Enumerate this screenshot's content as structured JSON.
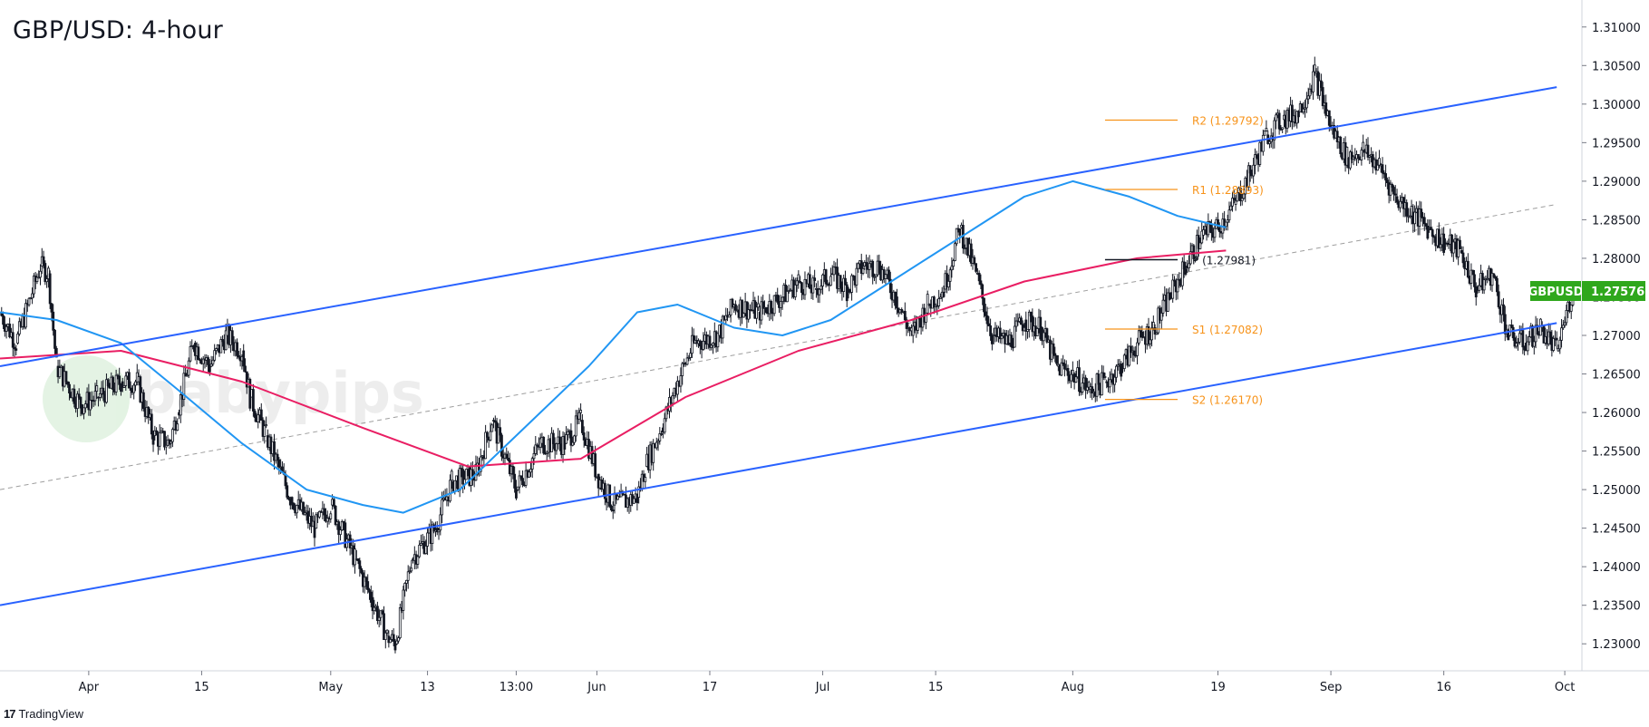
{
  "chart_data": {
    "type": "candlestick",
    "title": "GBP/USD: 4-hour",
    "symbol": "GBPUSD",
    "last_price": "1.27576",
    "y_axis": {
      "min": 1.2265,
      "max": 1.3135,
      "ticks": [
        "1.31000",
        "1.30500",
        "1.30000",
        "1.29500",
        "1.29000",
        "1.28500",
        "1.28000",
        "1.27500",
        "1.27000",
        "1.26500",
        "1.26000",
        "1.25500",
        "1.25000",
        "1.24500",
        "1.24000",
        "1.23500",
        "1.23000"
      ]
    },
    "x_axis": {
      "labels": [
        "Apr",
        "15",
        "May",
        "13",
        "13:00",
        "Jun",
        "17",
        "Jul",
        "15",
        "Aug",
        "19",
        "Sep",
        "16",
        "Oct"
      ],
      "range_start": "2024-03-21",
      "range_end": "2024-10-02"
    },
    "grid": false,
    "price_path": [
      [
        "2024-03-21",
        1.273
      ],
      [
        "2024-03-23",
        1.269
      ],
      [
        "2024-03-26",
        1.279
      ],
      [
        "2024-03-27",
        1.278
      ],
      [
        "2024-03-28",
        1.266
      ],
      [
        "2024-03-31",
        1.261
      ],
      [
        "2024-04-02",
        1.262
      ],
      [
        "2024-04-05",
        1.264
      ],
      [
        "2024-04-07",
        1.264
      ],
      [
        "2024-04-09",
        1.257
      ],
      [
        "2024-04-11",
        1.256
      ],
      [
        "2024-04-12",
        1.26
      ],
      [
        "2024-04-14",
        1.269
      ],
      [
        "2024-04-16",
        1.266
      ],
      [
        "2024-04-18",
        1.27
      ],
      [
        "2024-04-20",
        1.268
      ],
      [
        "2024-04-21",
        1.262
      ],
      [
        "2024-04-23",
        1.257
      ],
      [
        "2024-04-26",
        1.249
      ],
      [
        "2024-04-29",
        1.245
      ],
      [
        "2024-05-01",
        1.248
      ],
      [
        "2024-05-04",
        1.241
      ],
      [
        "2024-05-06",
        1.236
      ],
      [
        "2024-05-08",
        1.231
      ],
      [
        "2024-05-09",
        1.23
      ],
      [
        "2024-05-11",
        1.241
      ],
      [
        "2024-05-14",
        1.245
      ],
      [
        "2024-05-16",
        1.251
      ],
      [
        "2024-05-19",
        1.252
      ],
      [
        "2024-05-21",
        1.259
      ],
      [
        "2024-05-24",
        1.25
      ],
      [
        "2024-05-27",
        1.256
      ],
      [
        "2024-05-30",
        1.256
      ],
      [
        "2024-06-01",
        1.259
      ],
      [
        "2024-06-03",
        1.252
      ],
      [
        "2024-06-05",
        1.248
      ],
      [
        "2024-06-08",
        1.249
      ],
      [
        "2024-06-09",
        1.253
      ],
      [
        "2024-06-11",
        1.258
      ],
      [
        "2024-06-13",
        1.264
      ],
      [
        "2024-06-15",
        1.269
      ],
      [
        "2024-06-18",
        1.27
      ],
      [
        "2024-06-20",
        1.274
      ],
      [
        "2024-06-23",
        1.273
      ],
      [
        "2024-06-26",
        1.275
      ],
      [
        "2024-06-28",
        1.277
      ],
      [
        "2024-06-30",
        1.276
      ],
      [
        "2024-07-02",
        1.278
      ],
      [
        "2024-07-04",
        1.276
      ],
      [
        "2024-07-06",
        1.279
      ],
      [
        "2024-07-08",
        1.279
      ],
      [
        "2024-07-10",
        1.275
      ],
      [
        "2024-07-12",
        1.27
      ],
      [
        "2024-07-14",
        1.274
      ],
      [
        "2024-07-16",
        1.276
      ],
      [
        "2024-07-18",
        1.284
      ],
      [
        "2024-07-20",
        1.278
      ],
      [
        "2024-07-22",
        1.27
      ],
      [
        "2024-07-24",
        1.269
      ],
      [
        "2024-07-26",
        1.272
      ],
      [
        "2024-07-28",
        1.271
      ],
      [
        "2024-07-30",
        1.266
      ],
      [
        "2024-08-01",
        1.265
      ],
      [
        "2024-08-03",
        1.263
      ],
      [
        "2024-08-05",
        1.264
      ],
      [
        "2024-08-07",
        1.266
      ],
      [
        "2024-08-09",
        1.269
      ],
      [
        "2024-08-11",
        1.271
      ],
      [
        "2024-08-13",
        1.275
      ],
      [
        "2024-08-15",
        1.279
      ],
      [
        "2024-08-17",
        1.283
      ],
      [
        "2024-08-19",
        1.284
      ],
      [
        "2024-08-21",
        1.287
      ],
      [
        "2024-08-23",
        1.291
      ],
      [
        "2024-08-25",
        1.296
      ],
      [
        "2024-08-27",
        1.298
      ],
      [
        "2024-08-29",
        1.299
      ],
      [
        "2024-08-31",
        1.304
      ],
      [
        "2024-09-02",
        1.297
      ],
      [
        "2024-09-04",
        1.293
      ],
      [
        "2024-09-06",
        1.294
      ],
      [
        "2024-09-08",
        1.292
      ],
      [
        "2024-09-10",
        1.288
      ],
      [
        "2024-09-12",
        1.286
      ],
      [
        "2024-09-14",
        1.284
      ],
      [
        "2024-09-16",
        1.282
      ],
      [
        "2024-09-18",
        1.281
      ],
      [
        "2024-09-20",
        1.276
      ],
      [
        "2024-09-22",
        1.278
      ],
      [
        "2024-09-24",
        1.27
      ],
      [
        "2024-09-26",
        1.269
      ],
      [
        "2024-09-28",
        1.271
      ],
      [
        "2024-09-30",
        1.268
      ],
      [
        "2024-10-02",
        1.276
      ]
    ],
    "overlays": {
      "channel_upper": {
        "color": "#2962ff",
        "from": [
          "2024-03-21",
          1.266
        ],
        "to": [
          "2024-09-30",
          1.3022
        ]
      },
      "channel_lower": {
        "color": "#2962ff",
        "from": [
          "2024-03-21",
          1.235
        ],
        "to": [
          "2024-09-30",
          1.2716
        ]
      },
      "channel_mid": {
        "color": "#9e9e9e",
        "from": [
          "2024-03-21",
          1.25
        ],
        "to": [
          "2024-09-30",
          1.287
        ]
      },
      "ma_fast": {
        "color": "#2196f3",
        "points": [
          [
            "2024-03-21",
            1.273
          ],
          [
            "2024-03-28",
            1.272
          ],
          [
            "2024-04-05",
            1.269
          ],
          [
            "2024-04-12",
            1.263
          ],
          [
            "2024-04-20",
            1.256
          ],
          [
            "2024-04-28",
            1.25
          ],
          [
            "2024-05-05",
            1.248
          ],
          [
            "2024-05-10",
            1.247
          ],
          [
            "2024-05-17",
            1.25
          ],
          [
            "2024-05-25",
            1.258
          ],
          [
            "2024-06-02",
            1.266
          ],
          [
            "2024-06-08",
            1.273
          ],
          [
            "2024-06-13",
            1.274
          ],
          [
            "2024-06-20",
            1.271
          ],
          [
            "2024-06-26",
            1.27
          ],
          [
            "2024-07-02",
            1.272
          ],
          [
            "2024-07-08",
            1.276
          ],
          [
            "2024-07-14",
            1.28
          ],
          [
            "2024-07-20",
            1.284
          ],
          [
            "2024-07-26",
            1.288
          ],
          [
            "2024-08-01",
            1.29
          ],
          [
            "2024-08-08",
            1.288
          ],
          [
            "2024-08-14",
            1.2855
          ],
          [
            "2024-08-20",
            1.284
          ]
        ]
      },
      "ma_slow": {
        "color": "#e91e63",
        "points": [
          [
            "2024-03-21",
            1.267
          ],
          [
            "2024-04-05",
            1.268
          ],
          [
            "2024-04-20",
            1.264
          ],
          [
            "2024-05-05",
            1.258
          ],
          [
            "2024-05-18",
            1.253
          ],
          [
            "2024-06-01",
            1.254
          ],
          [
            "2024-06-14",
            1.262
          ],
          [
            "2024-06-28",
            1.268
          ],
          [
            "2024-07-12",
            1.272
          ],
          [
            "2024-07-26",
            1.277
          ],
          [
            "2024-08-09",
            1.28
          ],
          [
            "2024-08-20",
            1.281
          ]
        ]
      }
    },
    "pivot_levels": [
      {
        "label": "R2 (1.29792)",
        "value": 1.29792,
        "color": "#f7931a"
      },
      {
        "label": "R1 (1.28893)",
        "value": 1.28893,
        "color": "#f7931a"
      },
      {
        "label": "P (1.27981)",
        "value": 1.27981,
        "color": "#131722"
      },
      {
        "label": "S1 (1.27082)",
        "value": 1.27082,
        "color": "#f7931a"
      },
      {
        "label": "S2 (1.26170)",
        "value": 1.2617,
        "color": "#f7931a"
      }
    ],
    "pivot_start": "2024-08-05",
    "pivot_end": "2024-08-14",
    "price_label_color": "#2fa71c"
  },
  "footer": {
    "logo_text": "TradingView"
  }
}
